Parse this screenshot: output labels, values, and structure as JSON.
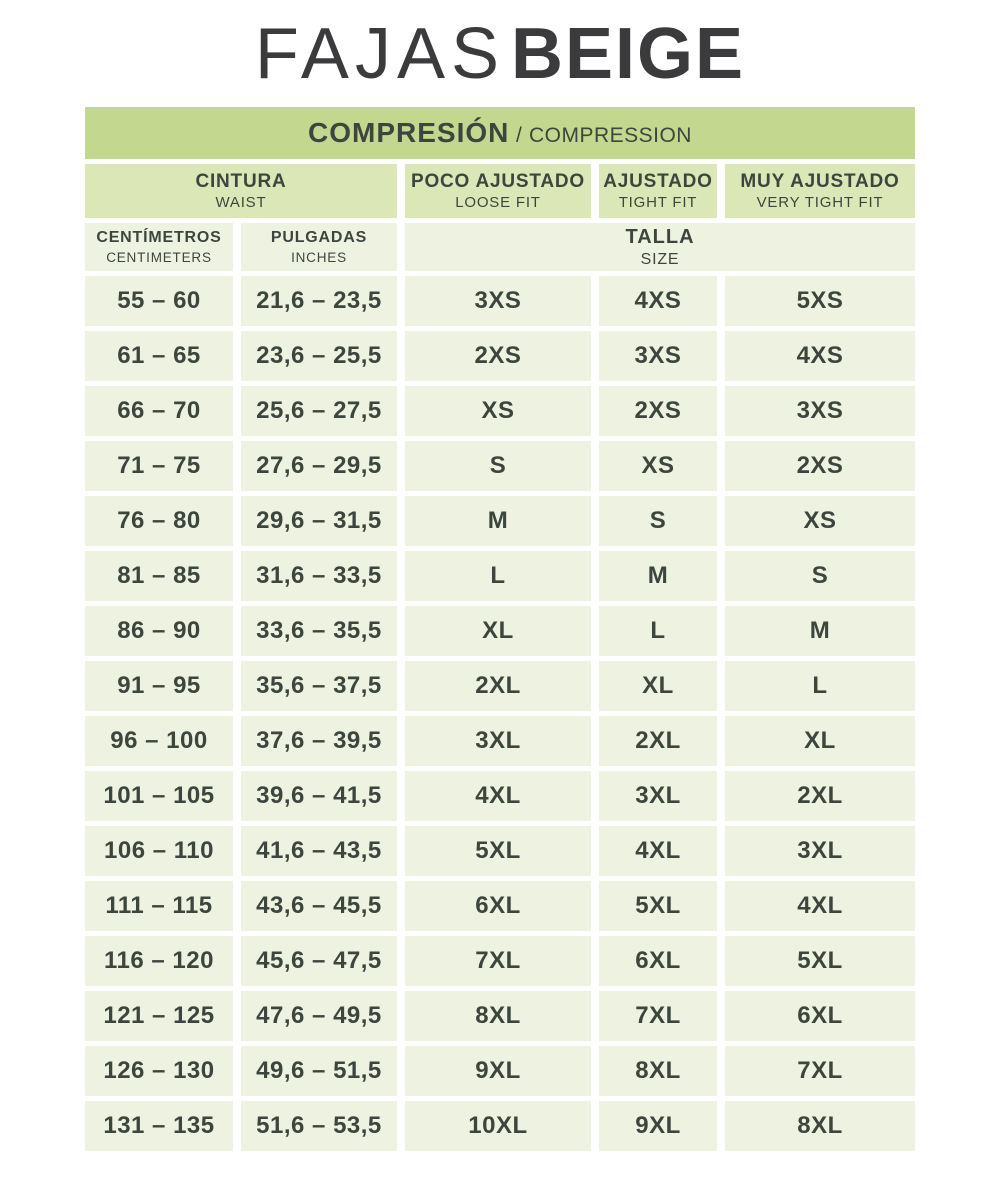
{
  "title": {
    "brand": "FAJAS",
    "product": "BEIGE"
  },
  "colors": {
    "bar": "#c4d78e",
    "group": "#dbe7b6",
    "cell": "#edf3e0",
    "text": "#3d463e",
    "title": "#3b3b3d",
    "bg": "#ffffff"
  },
  "chart_data": {
    "type": "table",
    "title": "FAJAS BEIGE",
    "main_header": {
      "es": "COMPRESIÓN",
      "divider": "/",
      "en": "COMPRESSION"
    },
    "group_headers": [
      {
        "es": "CINTURA",
        "en": "WAIST"
      },
      {
        "es": "POCO AJUSTADO",
        "en": "LOOSE FIT"
      },
      {
        "es": "AJUSTADO",
        "en": "TIGHT FIT"
      },
      {
        "es": "MUY AJUSTADO",
        "en": "VERY TIGHT FIT"
      }
    ],
    "unit_headers": [
      {
        "es": "CENTÍMETROS",
        "en": "CENTIMETERS"
      },
      {
        "es": "PULGADAS",
        "en": "INCHES"
      },
      {
        "es": "TALLA",
        "en": "SIZE"
      }
    ],
    "column_keys": [
      "centimeters",
      "inches",
      "loose-fit-size",
      "tight-fit-size",
      "very-tight-fit-size"
    ],
    "rows": [
      [
        "55 – 60",
        "21,6 – 23,5",
        "3XS",
        "4XS",
        "5XS"
      ],
      [
        "61 – 65",
        "23,6 – 25,5",
        "2XS",
        "3XS",
        "4XS"
      ],
      [
        "66 – 70",
        "25,6 – 27,5",
        "XS",
        "2XS",
        "3XS"
      ],
      [
        "71 – 75",
        "27,6 – 29,5",
        "S",
        "XS",
        "2XS"
      ],
      [
        "76 – 80",
        "29,6 – 31,5",
        "M",
        "S",
        "XS"
      ],
      [
        "81 – 85",
        "31,6 – 33,5",
        "L",
        "M",
        "S"
      ],
      [
        "86 – 90",
        "33,6 – 35,5",
        "XL",
        "L",
        "M"
      ],
      [
        "91 – 95",
        "35,6 – 37,5",
        "2XL",
        "XL",
        "L"
      ],
      [
        "96 – 100",
        "37,6 – 39,5",
        "3XL",
        "2XL",
        "XL"
      ],
      [
        "101 – 105",
        "39,6 – 41,5",
        "4XL",
        "3XL",
        "2XL"
      ],
      [
        "106 – 110",
        "41,6 – 43,5",
        "5XL",
        "4XL",
        "3XL"
      ],
      [
        "111 – 115",
        "43,6 – 45,5",
        "6XL",
        "5XL",
        "4XL"
      ],
      [
        "116 – 120",
        "45,6 – 47,5",
        "7XL",
        "6XL",
        "5XL"
      ],
      [
        "121 – 125",
        "47,6 – 49,5",
        "8XL",
        "7XL",
        "6XL"
      ],
      [
        "126 – 130",
        "49,6 – 51,5",
        "9XL",
        "8XL",
        "7XL"
      ],
      [
        "131 – 135",
        "51,6 – 53,5",
        "10XL",
        "9XL",
        "8XL"
      ]
    ]
  }
}
